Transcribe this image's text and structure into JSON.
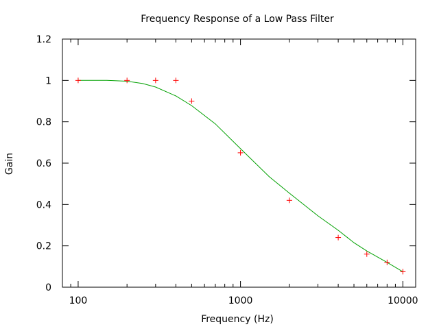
{
  "chart_data": {
    "type": "line",
    "title": "Frequency Response of a Low Pass Filter",
    "xlabel": "Frequency (Hz)",
    "ylabel": "Gain",
    "xscale": "log",
    "xlim": [
      80,
      12000
    ],
    "ylim": [
      0,
      1.2
    ],
    "xticks": [
      {
        "value": 100,
        "label": "100"
      },
      {
        "value": 1000,
        "label": "1000"
      },
      {
        "value": 10000,
        "label": "10000"
      }
    ],
    "yticks": [
      {
        "value": 0,
        "label": "0"
      },
      {
        "value": 0.2,
        "label": "0.2"
      },
      {
        "value": 0.4,
        "label": "0.4"
      },
      {
        "value": 0.6,
        "label": "0.6"
      },
      {
        "value": 0.8,
        "label": "0.8"
      },
      {
        "value": 1.0,
        "label": "1"
      },
      {
        "value": 1.2,
        "label": "1.2"
      }
    ],
    "grid": false,
    "legend": "none",
    "series": [
      {
        "kind": "points",
        "marker": "plus",
        "color": "#ff0000",
        "x": [
          100,
          200,
          300,
          400,
          500,
          1000,
          2000,
          4000,
          6000,
          8000,
          10000
        ],
        "y": [
          1.0,
          1.0,
          1.0,
          1.0,
          0.9,
          0.65,
          0.42,
          0.24,
          0.16,
          0.12,
          0.075
        ]
      },
      {
        "kind": "line",
        "color": "#00a000",
        "x": [
          100,
          150,
          200,
          250,
          300,
          400,
          500,
          700,
          1000,
          1500,
          2000,
          3000,
          4000,
          5000,
          6000,
          8000,
          10000
        ],
        "y": [
          1.0,
          1.0,
          0.996,
          0.985,
          0.968,
          0.925,
          0.878,
          0.79,
          0.67,
          0.535,
          0.455,
          0.345,
          0.275,
          0.215,
          0.175,
          0.12,
          0.075
        ]
      }
    ]
  }
}
